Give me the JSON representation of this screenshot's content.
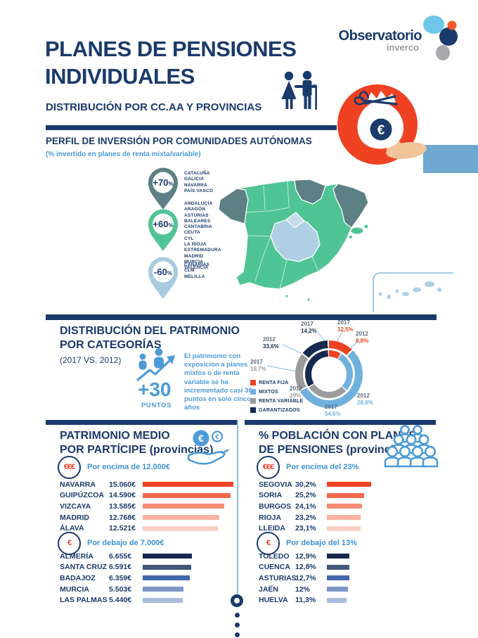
{
  "colors": {
    "navy": "#1a3a6b",
    "accent_blue": "#4d9bd6",
    "red": "#ee4223",
    "green": "#4fc495",
    "dark_slate": "#5c8084",
    "map_light_blue": "#afd0e4",
    "gray": "#9c9c9c",
    "donut_blue": "#6fb1dc"
  },
  "logo": {
    "line1": "Observatorio",
    "line2": "inverco"
  },
  "header": {
    "title_line1": "PLANES DE PENSIONES",
    "title_line2": "INDIVIDUALES",
    "subtitle": "DISTRIBUCIÓN POR CC.AA Y PROVINCIAS"
  },
  "section_profile": {
    "title": "PERFIL DE INVERSIÓN POR COMUNIDADES AUTÓNOMAS",
    "subtitle": "(% invertido en planes de renta mixta/variable)",
    "pins": [
      {
        "label": "+70%",
        "color": "#5c8084",
        "regions": [
          "CATALUÑA",
          "GALICIA",
          "NAVARRA",
          "PAÍS VASCO"
        ]
      },
      {
        "label": "+60%",
        "color": "#4fc495",
        "regions": [
          "ANDALUCÍA",
          "ARAGÓN",
          "ASTURIAS",
          "BALEARES",
          "CANTABRIA",
          "CEUTA",
          "CYL",
          "LA RIOJA",
          "EXTREMADURA",
          "MADRID",
          "MURCIA",
          "VALENCIA"
        ]
      },
      {
        "label": "-60%",
        "color": "#a9cbdf",
        "regions": [
          "CANARIAS",
          "CLM",
          "MELILLA"
        ]
      }
    ]
  },
  "section_patrimonio": {
    "title_line1": "DISTRIBUCIÓN DEL PATRIMONIO",
    "title_line2": "POR CATEGORÍAS",
    "subtitle": "(2017 VS. 2012)",
    "highlight_value": "+30",
    "highlight_label": "PUNTOS",
    "description": "El patrimonio con exposición a planes mixtos o de renta variable se ha incrementado casi 30 puntos en solo cinco años"
  },
  "panels": {
    "left": {
      "title_line1": "PATRIMONIO MEDIO",
      "title_line2": "POR PARTÍCIPE (provincias)"
    },
    "right": {
      "title_line1": "% POBLACIÓN CON PLANES",
      "title_line2": "DE PENSIONES (provincias)"
    }
  },
  "chart_data": [
    {
      "type": "pie",
      "variant": "double-donut",
      "title": "DISTRIBUCIÓN DEL PATRIMONIO POR CATEGORÍAS (2017 VS. 2012)",
      "categories": [
        "RENTA FIJA",
        "MIXTOS",
        "RENTA VARIABLE",
        "GARANTIZADOS"
      ],
      "colors": [
        "#ee4223",
        "#6fb1dc",
        "#9c9c9c",
        "#152a4e"
      ],
      "legend_position": "left",
      "series": [
        {
          "name": "2017",
          "ring": "outer",
          "values": [
            12.5,
            54.6,
            18.7,
            14.2
          ]
        },
        {
          "name": "2012",
          "ring": "inner",
          "values": [
            8.8,
            28.6,
            29.0,
            33.6
          ]
        }
      ],
      "callouts": [
        {
          "year": "2017",
          "value": "14,2%",
          "color": "#152a4e"
        },
        {
          "year": "2017",
          "value": "12,5%",
          "color": "#ee4223"
        },
        {
          "year": "2012",
          "value": "8,8%",
          "color": "#ee4223"
        },
        {
          "year": "2012",
          "value": "33,6%",
          "color": "#152a4e"
        },
        {
          "year": "2017",
          "value": "18,7%",
          "color": "#9c9c9c"
        },
        {
          "year": "2012",
          "value": "29%",
          "color": "#9c9c9c"
        },
        {
          "year": "2017",
          "value": "54,6%",
          "color": "#6fb1dc"
        },
        {
          "year": "2012",
          "value": "28,6%",
          "color": "#6fb1dc"
        }
      ]
    },
    {
      "type": "bar",
      "badge": "€€€",
      "title": "Por encima de 12.000€",
      "categories": [
        "NAVARRA",
        "GUIPÚZCOA",
        "VIZCAYA",
        "MADRID",
        "ÁLAVA"
      ],
      "values": [
        15060,
        14590,
        13585,
        12768,
        12521
      ],
      "display_values": [
        "15.060€",
        "14.590€",
        "13.585€",
        "12.768€",
        "12.521€"
      ],
      "bar_colors": [
        "#ee4223",
        "#f26a4b",
        "#f58d74",
        "#f9b2a0",
        "#fbcfc2"
      ]
    },
    {
      "type": "bar",
      "badge": "€",
      "title": "Por debajo de 7.000€",
      "categories": [
        "ALMERÍA",
        "SANTA CRUZ",
        "BADAJOZ",
        "MURCIA",
        "LAS PALMAS"
      ],
      "values": [
        6655,
        6591,
        6359,
        5503,
        5440
      ],
      "display_values": [
        "6.655€",
        "6.591€",
        "6.359€",
        "5.503€",
        "5.440€"
      ],
      "bar_colors": [
        "#152a4e",
        "#41567a",
        "#4268ab",
        "#7b95c6",
        "#a9bddd"
      ]
    },
    {
      "type": "bar",
      "badge": "€€€",
      "title": "Por encima del 23%",
      "categories": [
        "SEGOVIA",
        "SORIA",
        "BURGOS",
        "RIOJA",
        "LLEIDA"
      ],
      "values": [
        30.2,
        25.2,
        24.1,
        23.2,
        23.1
      ],
      "display_values": [
        "30,2%",
        "25,2%",
        "24,1%",
        "23,2%",
        "23,1%"
      ],
      "bar_colors": [
        "#ee4223",
        "#f26a4b",
        "#f58d74",
        "#f9b2a0",
        "#fbcfc2"
      ]
    },
    {
      "type": "bar",
      "badge": "€",
      "title": "Por debajo del 13%",
      "categories": [
        "TOLEDO",
        "CUENCA",
        "ASTURIAS",
        "JAÉN",
        "HUELVA"
      ],
      "values": [
        12.9,
        12.8,
        12.7,
        12.0,
        11.3
      ],
      "display_values": [
        "12,9%",
        "12,8%",
        "12,7%",
        "12%",
        "11,3%"
      ],
      "bar_colors": [
        "#152a4e",
        "#41567a",
        "#4268ab",
        "#7b95c6",
        "#a9bddd"
      ]
    }
  ]
}
